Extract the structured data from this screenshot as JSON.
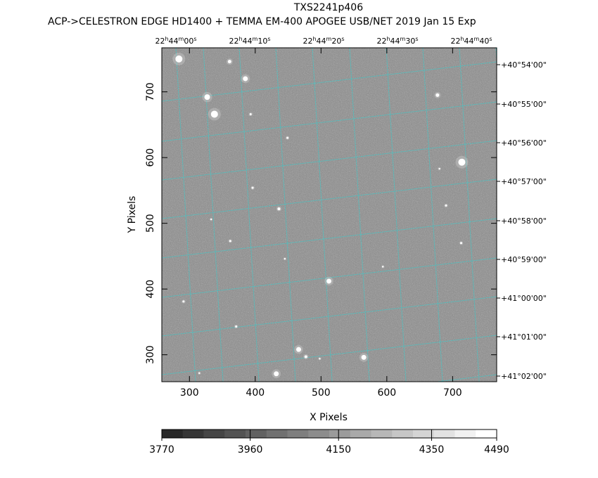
{
  "chart_data": {
    "type": "heatmap",
    "title": "TXS2241p406",
    "subtitle": "ACP->CELESTRON EDGE HD1400 + TEMMA EM-400 APOGEE USB/NET   2019 Jan 15    Exp",
    "xlabel": "X Pixels",
    "ylabel": "Y Pixels",
    "xlim": [
      258,
      767
    ],
    "ylim": [
      259,
      767
    ],
    "x_ticks": [
      300,
      400,
      500,
      600,
      700
    ],
    "y_ticks": [
      300,
      400,
      500,
      600,
      700
    ],
    "grid": true,
    "grid_color": "#40c8c8",
    "ra_labels": [
      {
        "h": "22",
        "hu": "h",
        "m": "44",
        "mu": "m",
        "s": "00",
        "su": "s"
      },
      {
        "h": "22",
        "hu": "h",
        "m": "44",
        "mu": "m",
        "s": "10",
        "su": "s"
      },
      {
        "h": "22",
        "hu": "h",
        "m": "44",
        "mu": "m",
        "s": "20",
        "su": "s"
      },
      {
        "h": "22",
        "hu": "h",
        "m": "44",
        "mu": "m",
        "s": "30",
        "su": "s"
      },
      {
        "h": "22",
        "hu": "h",
        "m": "44",
        "mu": "m",
        "s": "40",
        "su": "s"
      }
    ],
    "ra_x": [
      250,
      355,
      460,
      565,
      670
    ],
    "dec_labels": [
      "+40°54'00\"",
      "+40°55'00\"",
      "+40°56'00\"",
      "+40°57'00\"",
      "+40°58'00\"",
      "+40°59'00\"",
      "+41°00'00\"",
      "+41°01'00\"",
      "+41°02'00\""
    ],
    "dec_y": [
      754,
      695,
      635,
      576,
      516,
      457,
      397,
      338,
      278
    ],
    "colorbar": {
      "min": 3770,
      "max": 4490,
      "tick_labels": [
        "3770",
        "3960",
        "4150",
        "4350",
        "4490"
      ],
      "tick_values": [
        3770,
        3960,
        4150,
        4350,
        4490
      ],
      "steps": 16
    },
    "stars": [
      {
        "x": 284,
        "y": 750,
        "r": 5
      },
      {
        "x": 361,
        "y": 746,
        "r": 2.5
      },
      {
        "x": 385,
        "y": 720,
        "r": 3.5
      },
      {
        "x": 327,
        "y": 692,
        "r": 4
      },
      {
        "x": 338,
        "y": 666,
        "r": 5
      },
      {
        "x": 393,
        "y": 666,
        "r": 1.5
      },
      {
        "x": 677,
        "y": 695,
        "r": 2.5
      },
      {
        "x": 714,
        "y": 593,
        "r": 5
      },
      {
        "x": 690,
        "y": 527,
        "r": 1.5
      },
      {
        "x": 449,
        "y": 630,
        "r": 1.5
      },
      {
        "x": 436,
        "y": 522,
        "r": 2
      },
      {
        "x": 396,
        "y": 554,
        "r": 1.5
      },
      {
        "x": 362,
        "y": 473,
        "r": 1.5
      },
      {
        "x": 333,
        "y": 506,
        "r": 1.2
      },
      {
        "x": 445,
        "y": 446,
        "r": 1.2
      },
      {
        "x": 512,
        "y": 412,
        "r": 3.5
      },
      {
        "x": 594,
        "y": 434,
        "r": 1.2
      },
      {
        "x": 713,
        "y": 470,
        "r": 1.5
      },
      {
        "x": 291,
        "y": 381,
        "r": 1.5
      },
      {
        "x": 371,
        "y": 343,
        "r": 1.5
      },
      {
        "x": 466,
        "y": 308,
        "r": 3.5
      },
      {
        "x": 477,
        "y": 297,
        "r": 2
      },
      {
        "x": 565,
        "y": 296,
        "r": 3.5
      },
      {
        "x": 432,
        "y": 271,
        "r": 3.5
      },
      {
        "x": 315,
        "y": 272,
        "r": 1.2
      },
      {
        "x": 498,
        "y": 294,
        "r": 1.2
      },
      {
        "x": 680,
        "y": 583,
        "r": 1.2
      }
    ]
  }
}
